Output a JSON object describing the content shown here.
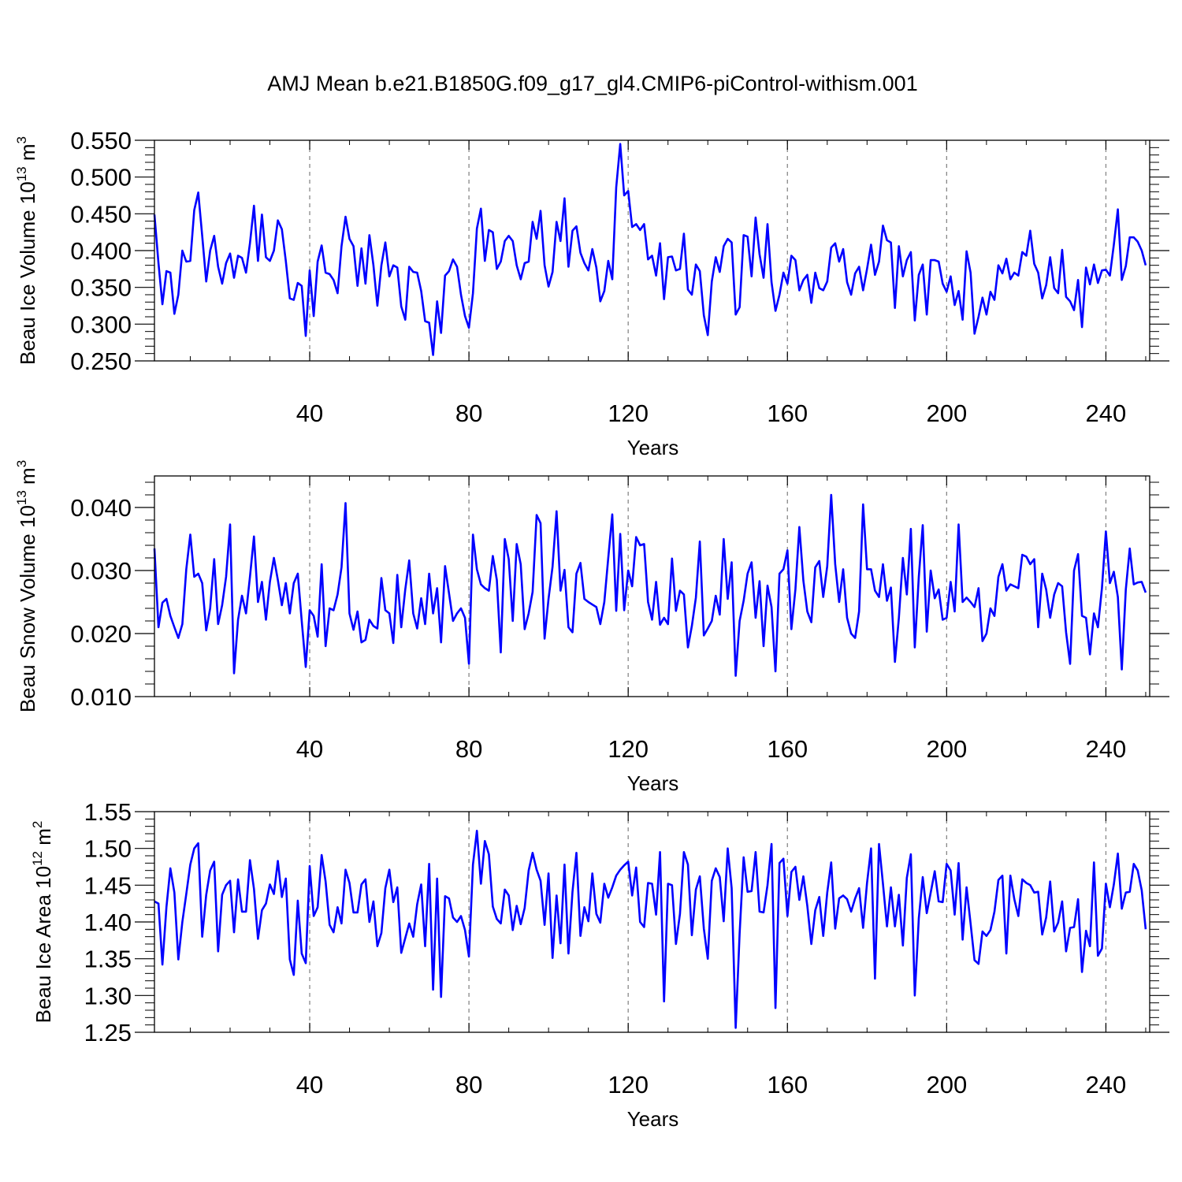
{
  "figure": {
    "title": "AMJ Mean b.e21.B1850G.f09_g17_gl4.CMIP6-piControl-withism.001",
    "line_color": "#0000ff",
    "grid_color": "#888888"
  },
  "chart_data": [
    {
      "type": "line",
      "title": "AMJ Mean b.e21.B1850G.f09_g17_gl4.CMIP6-piControl-withism.001",
      "xlabel": "Years",
      "ylabel_parts": {
        "base": "Beau Ice Volume 10",
        "exp": "13",
        "unit": " m",
        "unit_exp": "3"
      },
      "xlim": [
        1,
        251
      ],
      "ylim": [
        0.25,
        0.55
      ],
      "x_ticks": [
        40,
        80,
        120,
        160,
        200,
        240
      ],
      "x_tick_labels": [
        "40",
        "80",
        "120",
        "160",
        "200",
        "240"
      ],
      "y_ticks": [
        0.25,
        0.3,
        0.35,
        0.4,
        0.45,
        0.5,
        0.55
      ],
      "y_tick_labels": [
        "0.250",
        "0.300",
        "0.350",
        "0.400",
        "0.450",
        "0.500",
        "0.550"
      ],
      "x_start": 1,
      "series": [
        {
          "name": "Beau Ice Volume",
          "values": [
            0.449,
            0.383,
            0.327,
            0.372,
            0.37,
            0.314,
            0.34,
            0.4,
            0.385,
            0.386,
            0.455,
            0.479,
            0.42,
            0.358,
            0.4,
            0.42,
            0.378,
            0.355,
            0.383,
            0.396,
            0.363,
            0.393,
            0.39,
            0.37,
            0.41,
            0.461,
            0.386,
            0.449,
            0.391,
            0.386,
            0.4,
            0.441,
            0.429,
            0.386,
            0.335,
            0.333,
            0.356,
            0.352,
            0.284,
            0.373,
            0.311,
            0.385,
            0.407,
            0.37,
            0.368,
            0.36,
            0.342,
            0.406,
            0.446,
            0.416,
            0.406,
            0.352,
            0.403,
            0.355,
            0.421,
            0.38,
            0.325,
            0.38,
            0.411,
            0.365,
            0.38,
            0.377,
            0.324,
            0.306,
            0.378,
            0.371,
            0.37,
            0.345,
            0.304,
            0.302,
            0.258,
            0.331,
            0.288,
            0.366,
            0.372,
            0.388,
            0.378,
            0.34,
            0.311,
            0.295,
            0.342,
            0.43,
            0.457,
            0.386,
            0.428,
            0.425,
            0.375,
            0.385,
            0.413,
            0.42,
            0.413,
            0.38,
            0.361,
            0.383,
            0.385,
            0.439,
            0.416,
            0.454,
            0.38,
            0.351,
            0.371,
            0.439,
            0.413,
            0.471,
            0.378,
            0.427,
            0.433,
            0.397,
            0.383,
            0.373,
            0.402,
            0.377,
            0.331,
            0.345,
            0.386,
            0.361,
            0.486,
            0.545,
            0.475,
            0.481,
            0.432,
            0.436,
            0.428,
            0.436,
            0.388,
            0.393,
            0.366,
            0.41,
            0.334,
            0.391,
            0.392,
            0.373,
            0.375,
            0.423,
            0.347,
            0.34,
            0.381,
            0.372,
            0.312,
            0.285,
            0.358,
            0.391,
            0.371,
            0.406,
            0.416,
            0.411,
            0.313,
            0.323,
            0.421,
            0.419,
            0.365,
            0.445,
            0.395,
            0.363,
            0.436,
            0.357,
            0.318,
            0.34,
            0.37,
            0.355,
            0.393,
            0.387,
            0.346,
            0.36,
            0.367,
            0.329,
            0.37,
            0.349,
            0.346,
            0.358,
            0.404,
            0.41,
            0.385,
            0.402,
            0.357,
            0.34,
            0.369,
            0.378,
            0.346,
            0.375,
            0.408,
            0.367,
            0.385,
            0.434,
            0.414,
            0.411,
            0.322,
            0.406,
            0.365,
            0.387,
            0.398,
            0.305,
            0.367,
            0.381,
            0.313,
            0.387,
            0.387,
            0.385,
            0.355,
            0.344,
            0.365,
            0.326,
            0.345,
            0.306,
            0.399,
            0.37,
            0.287,
            0.31,
            0.336,
            0.313,
            0.344,
            0.333,
            0.38,
            0.369,
            0.389,
            0.361,
            0.37,
            0.366,
            0.398,
            0.393,
            0.427,
            0.382,
            0.37,
            0.335,
            0.353,
            0.391,
            0.349,
            0.342,
            0.401,
            0.337,
            0.331,
            0.319,
            0.36,
            0.296,
            0.377,
            0.354,
            0.381,
            0.356,
            0.373,
            0.374,
            0.366,
            0.408,
            0.456,
            0.36,
            0.379,
            0.418,
            0.418,
            0.412,
            0.4,
            0.38
          ]
        }
      ]
    },
    {
      "type": "line",
      "xlabel": "Years",
      "ylabel_parts": {
        "base": "Beau Snow Volume 10",
        "exp": "13",
        "unit": " m",
        "unit_exp": "3"
      },
      "xlim": [
        1,
        251
      ],
      "ylim": [
        0.01,
        0.045
      ],
      "x_ticks": [
        40,
        80,
        120,
        160,
        200,
        240
      ],
      "x_tick_labels": [
        "40",
        "80",
        "120",
        "160",
        "200",
        "240"
      ],
      "y_ticks": [
        0.01,
        0.02,
        0.03,
        0.04
      ],
      "y_tick_labels": [
        "0.010",
        "0.020",
        "0.030",
        "0.040"
      ],
      "x_start": 1,
      "series": [
        {
          "name": "Beau Snow Volume",
          "values": [
            0.0335,
            0.021,
            0.0249,
            0.0255,
            0.0228,
            0.021,
            0.0193,
            0.0215,
            0.0302,
            0.0357,
            0.029,
            0.0295,
            0.028,
            0.0205,
            0.024,
            0.0318,
            0.0215,
            0.0245,
            0.029,
            0.0373,
            0.0137,
            0.0222,
            0.026,
            0.0232,
            0.029,
            0.0354,
            0.025,
            0.0282,
            0.0222,
            0.0282,
            0.032,
            0.0285,
            0.0245,
            0.028,
            0.0232,
            0.028,
            0.0295,
            0.022,
            0.0147,
            0.0237,
            0.0228,
            0.0195,
            0.031,
            0.018,
            0.024,
            0.0237,
            0.0262,
            0.0305,
            0.0407,
            0.0232,
            0.0206,
            0.0235,
            0.0186,
            0.019,
            0.0222,
            0.0212,
            0.0208,
            0.0288,
            0.0237,
            0.0232,
            0.0185,
            0.0293,
            0.021,
            0.027,
            0.0316,
            0.0232,
            0.0208,
            0.0256,
            0.0215,
            0.0295,
            0.0232,
            0.0272,
            0.0186,
            0.0307,
            0.0264,
            0.022,
            0.0232,
            0.024,
            0.0225,
            0.0152,
            0.0357,
            0.0302,
            0.0278,
            0.0272,
            0.0268,
            0.0323,
            0.0285,
            0.017,
            0.035,
            0.0318,
            0.022,
            0.0342,
            0.031,
            0.0207,
            0.0232,
            0.0266,
            0.0388,
            0.0375,
            0.0192,
            0.0255,
            0.0306,
            0.0394,
            0.0268,
            0.0301,
            0.021,
            0.0202,
            0.0295,
            0.0312,
            0.0255,
            0.025,
            0.0246,
            0.0242,
            0.0215,
            0.025,
            0.032,
            0.0389,
            0.0236,
            0.0358,
            0.0237,
            0.03,
            0.0275,
            0.0353,
            0.034,
            0.0342,
            0.025,
            0.0222,
            0.0282,
            0.0214,
            0.0225,
            0.0215,
            0.0319,
            0.0236,
            0.0268,
            0.0262,
            0.0178,
            0.0212,
            0.0257,
            0.0346,
            0.0197,
            0.0208,
            0.022,
            0.026,
            0.023,
            0.035,
            0.0255,
            0.0313,
            0.0133,
            0.022,
            0.0252,
            0.0295,
            0.0313,
            0.0225,
            0.0283,
            0.018,
            0.0276,
            0.0242,
            0.014,
            0.0295,
            0.0302,
            0.0332,
            0.0207,
            0.027,
            0.0369,
            0.0284,
            0.0235,
            0.0218,
            0.0305,
            0.0315,
            0.0258,
            0.0307,
            0.042,
            0.031,
            0.025,
            0.0302,
            0.0225,
            0.02,
            0.0193,
            0.0235,
            0.0405,
            0.0302,
            0.0302,
            0.0268,
            0.0258,
            0.031,
            0.0252,
            0.0273,
            0.0155,
            0.0225,
            0.032,
            0.0262,
            0.0366,
            0.0178,
            0.029,
            0.0372,
            0.0203,
            0.03,
            0.0256,
            0.027,
            0.0222,
            0.0225,
            0.0282,
            0.0235,
            0.0373,
            0.025,
            0.0257,
            0.025,
            0.0242,
            0.0272,
            0.0188,
            0.02,
            0.024,
            0.0228,
            0.029,
            0.031,
            0.0268,
            0.0278,
            0.0275,
            0.0272,
            0.0325,
            0.0322,
            0.031,
            0.0318,
            0.021,
            0.0295,
            0.027,
            0.0225,
            0.0262,
            0.028,
            0.0275,
            0.0202,
            0.0152,
            0.03,
            0.0326,
            0.0228,
            0.0225,
            0.0167,
            0.0232,
            0.021,
            0.0272,
            0.0362,
            0.028,
            0.0298,
            0.0258,
            0.0143,
            0.027,
            0.0335,
            0.0278,
            0.0281,
            0.0282,
            0.0265
          ]
        }
      ]
    },
    {
      "type": "line",
      "xlabel": "Years",
      "ylabel_parts": {
        "base": "Beau Ice Area 10",
        "exp": "12",
        "unit": " m",
        "unit_exp": "2"
      },
      "xlim": [
        1,
        251
      ],
      "ylim": [
        1.25,
        1.55
      ],
      "x_ticks": [
        40,
        80,
        120,
        160,
        200,
        240
      ],
      "x_tick_labels": [
        "40",
        "80",
        "120",
        "160",
        "200",
        "240"
      ],
      "y_ticks": [
        1.25,
        1.3,
        1.35,
        1.4,
        1.45,
        1.5,
        1.55
      ],
      "y_tick_labels": [
        "1.25",
        "1.30",
        "1.35",
        "1.40",
        "1.45",
        "1.50",
        "1.55"
      ],
      "x_start": 1,
      "series": [
        {
          "name": "Beau Ice Area",
          "values": [
            1.428,
            1.425,
            1.342,
            1.42,
            1.473,
            1.44,
            1.349,
            1.4,
            1.438,
            1.478,
            1.5,
            1.507,
            1.38,
            1.437,
            1.47,
            1.482,
            1.36,
            1.437,
            1.45,
            1.456,
            1.386,
            1.458,
            1.414,
            1.414,
            1.484,
            1.445,
            1.377,
            1.416,
            1.425,
            1.451,
            1.438,
            1.483,
            1.434,
            1.459,
            1.349,
            1.328,
            1.429,
            1.357,
            1.344,
            1.476,
            1.408,
            1.42,
            1.491,
            1.455,
            1.396,
            1.386,
            1.42,
            1.398,
            1.471,
            1.453,
            1.413,
            1.413,
            1.451,
            1.458,
            1.4,
            1.428,
            1.367,
            1.385,
            1.446,
            1.471,
            1.427,
            1.447,
            1.358,
            1.378,
            1.398,
            1.38,
            1.424,
            1.451,
            1.367,
            1.479,
            1.308,
            1.459,
            1.298,
            1.435,
            1.432,
            1.406,
            1.4,
            1.408,
            1.389,
            1.353,
            1.478,
            1.524,
            1.452,
            1.51,
            1.492,
            1.421,
            1.404,
            1.398,
            1.444,
            1.436,
            1.389,
            1.422,
            1.397,
            1.419,
            1.47,
            1.494,
            1.471,
            1.456,
            1.396,
            1.466,
            1.351,
            1.436,
            1.371,
            1.478,
            1.357,
            1.441,
            1.494,
            1.381,
            1.42,
            1.401,
            1.466,
            1.411,
            1.399,
            1.452,
            1.433,
            1.447,
            1.463,
            1.471,
            1.477,
            1.482,
            1.436,
            1.474,
            1.4,
            1.393,
            1.453,
            1.452,
            1.41,
            1.495,
            1.292,
            1.452,
            1.45,
            1.37,
            1.411,
            1.495,
            1.478,
            1.382,
            1.444,
            1.462,
            1.391,
            1.35,
            1.456,
            1.473,
            1.461,
            1.401,
            1.5,
            1.446,
            1.256,
            1.384,
            1.488,
            1.441,
            1.442,
            1.495,
            1.414,
            1.413,
            1.45,
            1.506,
            1.283,
            1.48,
            1.486,
            1.408,
            1.468,
            1.475,
            1.43,
            1.462,
            1.422,
            1.37,
            1.416,
            1.434,
            1.381,
            1.44,
            1.481,
            1.391,
            1.432,
            1.436,
            1.431,
            1.414,
            1.432,
            1.446,
            1.392,
            1.453,
            1.5,
            1.323,
            1.506,
            1.452,
            1.394,
            1.447,
            1.394,
            1.437,
            1.368,
            1.46,
            1.492,
            1.3,
            1.405,
            1.461,
            1.412,
            1.44,
            1.469,
            1.428,
            1.427,
            1.479,
            1.47,
            1.41,
            1.48,
            1.376,
            1.447,
            1.398,
            1.348,
            1.343,
            1.387,
            1.381,
            1.389,
            1.414,
            1.457,
            1.463,
            1.357,
            1.463,
            1.431,
            1.408,
            1.458,
            1.453,
            1.45,
            1.44,
            1.441,
            1.383,
            1.406,
            1.455,
            1.387,
            1.399,
            1.428,
            1.36,
            1.392,
            1.393,
            1.431,
            1.332,
            1.388,
            1.367,
            1.481,
            1.354,
            1.364,
            1.452,
            1.42,
            1.451,
            1.493,
            1.418,
            1.44,
            1.441,
            1.479,
            1.47,
            1.443,
            1.39
          ]
        }
      ]
    }
  ]
}
